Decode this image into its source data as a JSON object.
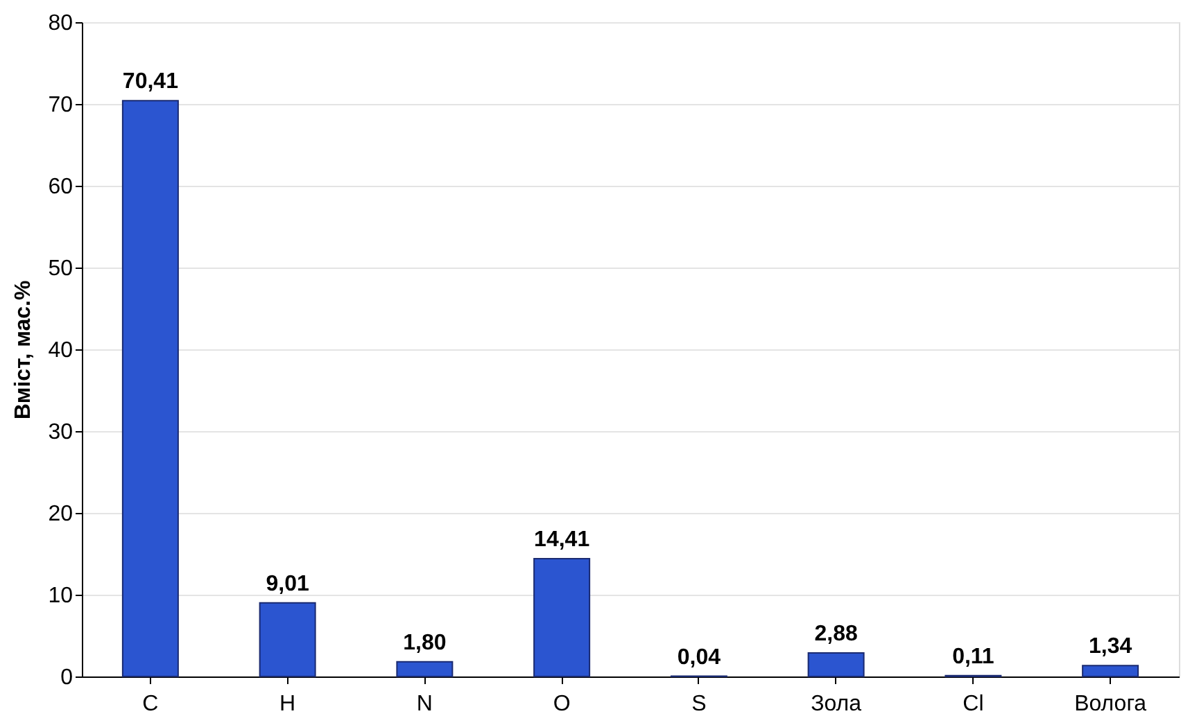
{
  "chart_data": {
    "type": "bar",
    "ylabel": "Вміст, мас.%",
    "categories": [
      "C",
      "H",
      "N",
      "O",
      "S",
      "Зола",
      "Cl",
      "Волога"
    ],
    "values": [
      70.41,
      9.01,
      1.8,
      14.41,
      0.04,
      2.88,
      0.11,
      1.34
    ],
    "value_labels": [
      "70,41",
      "9,01",
      "1,80",
      "14,41",
      "0,04",
      "2,88",
      "0,11",
      "1,34"
    ],
    "color": "#2b55d0",
    "ylim": [
      0,
      80
    ],
    "yticks": [
      0,
      10,
      20,
      30,
      40,
      50,
      60,
      70,
      80
    ],
    "grid": "y"
  }
}
